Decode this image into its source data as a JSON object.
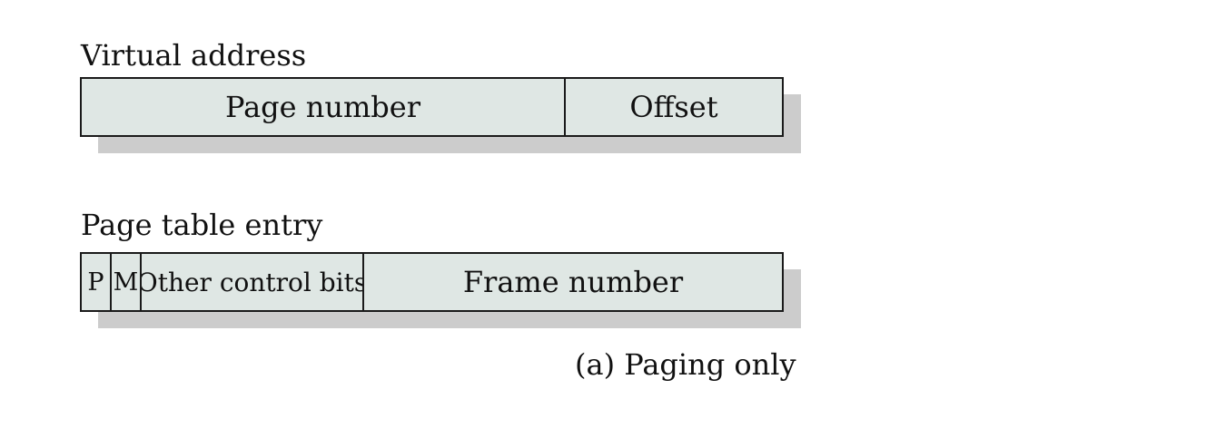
{
  "virtual_address": {
    "heading": "Virtual address",
    "fields": {
      "page_number": "Page number",
      "offset": "Offset"
    }
  },
  "page_table_entry": {
    "heading": "Page table entry",
    "fields": {
      "p": "P",
      "m": "M",
      "other_control_bits": "Other control bits",
      "frame_number": "Frame number"
    }
  },
  "caption": "(a) Paging only",
  "colors": {
    "field_fill": "#dfe7e4",
    "shadow": "#cccccc",
    "border": "#1a1a1a",
    "text": "#111111"
  }
}
